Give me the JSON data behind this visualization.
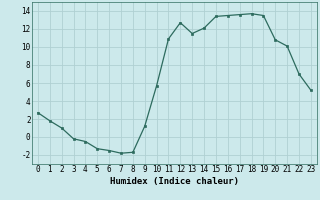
{
  "x": [
    0,
    1,
    2,
    3,
    4,
    5,
    6,
    7,
    8,
    9,
    10,
    11,
    12,
    13,
    14,
    15,
    16,
    17,
    18,
    19,
    20,
    21,
    22,
    23
  ],
  "y": [
    2.7,
    1.8,
    1.0,
    -0.2,
    -0.5,
    -1.3,
    -1.5,
    -1.8,
    -1.7,
    1.2,
    5.7,
    10.9,
    12.7,
    11.5,
    12.1,
    13.4,
    13.5,
    13.6,
    13.7,
    13.5,
    10.8,
    10.1,
    7.0,
    5.2
  ],
  "xlabel": "Humidex (Indice chaleur)",
  "ylim": [
    -3,
    15
  ],
  "xlim": [
    -0.5,
    23.5
  ],
  "yticks": [
    -2,
    0,
    2,
    4,
    6,
    8,
    10,
    12,
    14
  ],
  "xticks": [
    0,
    1,
    2,
    3,
    4,
    5,
    6,
    7,
    8,
    9,
    10,
    11,
    12,
    13,
    14,
    15,
    16,
    17,
    18,
    19,
    20,
    21,
    22,
    23
  ],
  "line_color": "#2d6b5e",
  "marker": "s",
  "marker_size": 2.0,
  "bg_color": "#cce9eb",
  "grid_color": "#b0d0d3",
  "xlabel_fontsize": 6.5,
  "tick_fontsize": 5.5
}
